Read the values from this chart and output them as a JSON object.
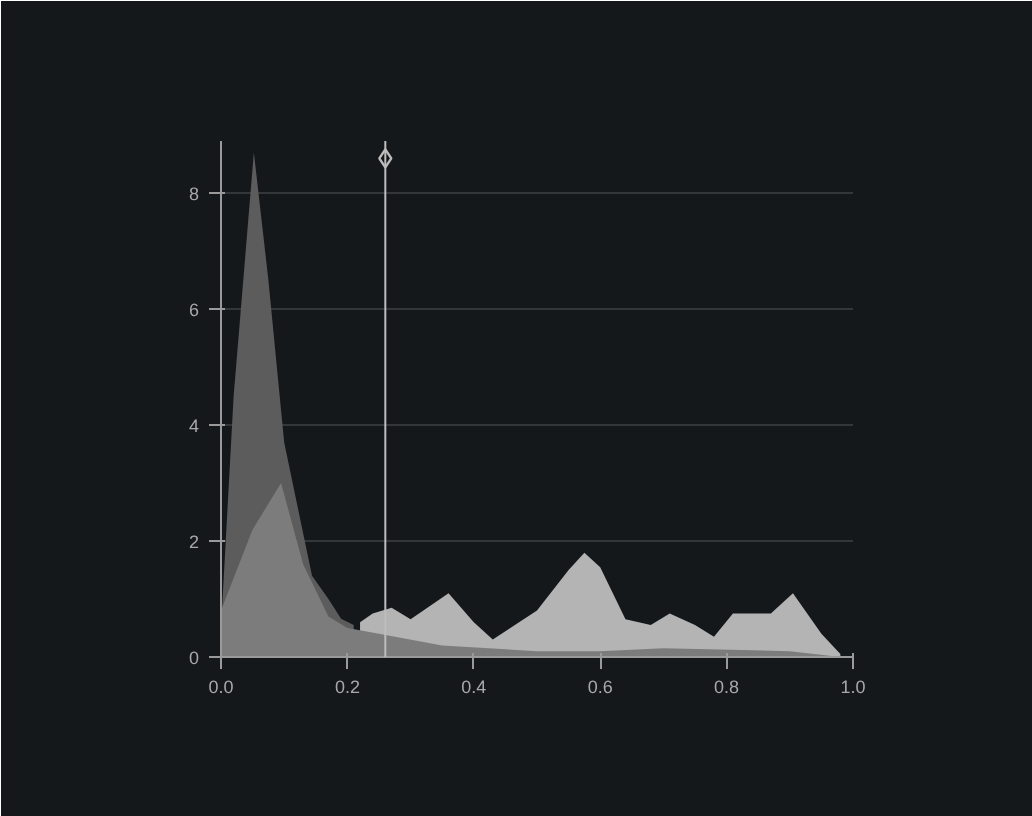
{
  "chart_data": {
    "type": "area",
    "xlim": [
      0,
      1
    ],
    "ylim": [
      0,
      8.9
    ],
    "xticks": [
      {
        "value": 0,
        "label": "0.0"
      },
      0.2,
      0.4,
      0.6,
      0.8,
      {
        "value": 1,
        "label": "1.0"
      }
    ],
    "yticks": [
      0,
      2,
      4,
      6,
      8
    ],
    "grid": "y",
    "series": [
      {
        "color": "#b4b4b4",
        "x": [
          0.22,
          0.24,
          0.27,
          0.3,
          0.36,
          0.4,
          0.43,
          0.5,
          0.55,
          0.575,
          0.6,
          0.64,
          0.68,
          0.71,
          0.75,
          0.78,
          0.81,
          0.87,
          0.905,
          0.95,
          0.98
        ],
        "values": [
          0.6,
          0.75,
          0.85,
          0.65,
          1.1,
          0.6,
          0.3,
          0.8,
          1.5,
          1.8,
          1.55,
          0.65,
          0.55,
          0.75,
          0.55,
          0.35,
          0.75,
          0.75,
          1.1,
          0.4,
          0.05
        ]
      },
      {
        "color": "#5c5c5c",
        "x": [
          0,
          0.02,
          0.052,
          0.075,
          0.1,
          0.144,
          0.17,
          0.19,
          0.21
        ],
        "values": [
          0.5,
          4.5,
          8.7,
          6.5,
          3.7,
          1.4,
          1.0,
          0.66,
          0.55
        ]
      },
      {
        "color": "#7c7c7c",
        "x": [
          0,
          0.05,
          0.095,
          0.13,
          0.17,
          0.2,
          0.25,
          0.35,
          0.5,
          0.6,
          0.7,
          0.9,
          0.98
        ],
        "values": [
          0.8,
          2.2,
          3.0,
          1.6,
          0.7,
          0.5,
          0.4,
          0.2,
          0.1,
          0.1,
          0.15,
          0.1,
          0.0
        ]
      },
      {
        "type": "scatter",
        "marker": "diamond",
        "color": "#bdbdbd",
        "x": [
          0.26
        ],
        "values": [
          8.6
        ]
      }
    ],
    "ref_lines": [
      {
        "axis": "x",
        "value": 0.26,
        "color": "#bdbdbd"
      }
    ]
  }
}
